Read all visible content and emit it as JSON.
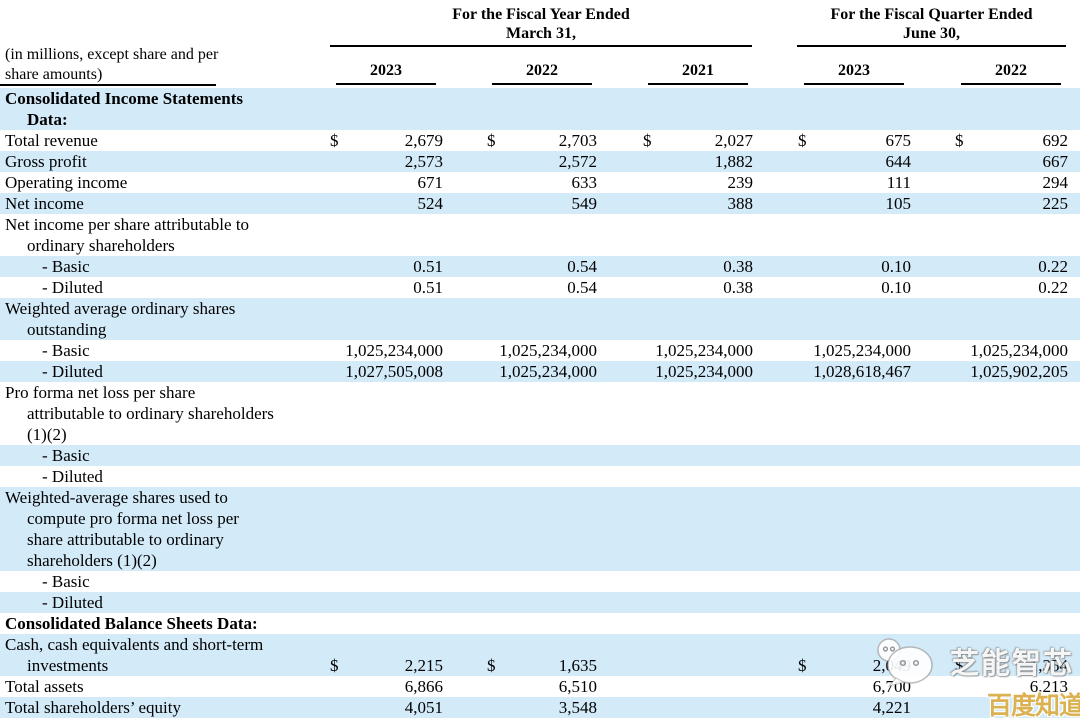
{
  "colors": {
    "row_highlight": "#d3eaf8",
    "badge_gold": "#dcb151",
    "rule_line": "#000000"
  },
  "header": {
    "units_note": "(in millions, except share and per\nshare amounts)",
    "fiscal_year_group": {
      "line1": "For the Fiscal Year Ended",
      "line2": "March 31,"
    },
    "fiscal_quarter_group": {
      "line1": "For the Fiscal Quarter Ended",
      "line2": "June 30,"
    },
    "years": [
      "2023",
      "2022",
      "2021",
      "2023",
      "2022"
    ]
  },
  "table": {
    "currency_symbol": "$",
    "rows": [
      {
        "label": "Consolidated Income Statements\nData:",
        "type": "section",
        "bg": "blue",
        "dollars": [
          false,
          false,
          false,
          false,
          false
        ],
        "values": [
          "",
          "",
          "",
          "",
          ""
        ]
      },
      {
        "label": "Total revenue",
        "type": "item",
        "bg": "white",
        "dollars": [
          true,
          true,
          true,
          true,
          true
        ],
        "values": [
          "2,679",
          "2,703",
          "2,027",
          "675",
          "692"
        ]
      },
      {
        "label": "Gross profit",
        "type": "item",
        "bg": "blue",
        "dollars": [
          false,
          false,
          false,
          false,
          false
        ],
        "values": [
          "2,573",
          "2,572",
          "1,882",
          "644",
          "667"
        ]
      },
      {
        "label": "Operating income",
        "type": "item",
        "bg": "white",
        "dollars": [
          false,
          false,
          false,
          false,
          false
        ],
        "values": [
          "671",
          "633",
          "239",
          "111",
          "294"
        ]
      },
      {
        "label": "Net income",
        "type": "item",
        "bg": "blue",
        "dollars": [
          false,
          false,
          false,
          false,
          false
        ],
        "values": [
          "524",
          "549",
          "388",
          "105",
          "225"
        ]
      },
      {
        "label": "Net income per share attributable to\nordinary shareholders",
        "type": "item",
        "bg": "white",
        "dollars": [
          false,
          false,
          false,
          false,
          false
        ],
        "values": [
          "",
          "",
          "",
          "",
          ""
        ]
      },
      {
        "label": "- Basic",
        "type": "subitem",
        "bg": "blue",
        "dollars": [
          false,
          false,
          false,
          false,
          false
        ],
        "values": [
          "0.51",
          "0.54",
          "0.38",
          "0.10",
          "0.22"
        ]
      },
      {
        "label": "- Diluted",
        "type": "subitem",
        "bg": "white",
        "dollars": [
          false,
          false,
          false,
          false,
          false
        ],
        "values": [
          "0.51",
          "0.54",
          "0.38",
          "0.10",
          "0.22"
        ]
      },
      {
        "label": "Weighted average ordinary shares\noutstanding",
        "type": "item",
        "bg": "blue",
        "dollars": [
          false,
          false,
          false,
          false,
          false
        ],
        "values": [
          "",
          "",
          "",
          "",
          ""
        ]
      },
      {
        "label": "- Basic",
        "type": "subitem",
        "bg": "white",
        "dollars": [
          false,
          false,
          false,
          false,
          false
        ],
        "values": [
          "1,025,234,000",
          "1,025,234,000",
          "1,025,234,000",
          "1,025,234,000",
          "1,025,234,000"
        ]
      },
      {
        "label": "- Diluted",
        "type": "subitem",
        "bg": "blue",
        "dollars": [
          false,
          false,
          false,
          false,
          false
        ],
        "values": [
          "1,027,505,008",
          "1,025,234,000",
          "1,025,234,000",
          "1,028,618,467",
          "1,025,902,205"
        ]
      },
      {
        "label": "Pro forma net loss per share\nattributable to ordinary shareholders\n(1)(2)",
        "type": "item",
        "bg": "white",
        "dollars": [
          false,
          false,
          false,
          false,
          false
        ],
        "values": [
          "",
          "",
          "",
          "",
          ""
        ]
      },
      {
        "label": "- Basic",
        "type": "subitem",
        "bg": "blue",
        "dollars": [
          false,
          false,
          false,
          false,
          false
        ],
        "values": [
          "",
          "",
          "",
          "",
          ""
        ]
      },
      {
        "label": "- Diluted",
        "type": "subitem",
        "bg": "white",
        "dollars": [
          false,
          false,
          false,
          false,
          false
        ],
        "values": [
          "",
          "",
          "",
          "",
          ""
        ]
      },
      {
        "label": "Weighted-average shares used to\ncompute pro forma net loss per\nshare attributable to ordinary\nshareholders (1)(2)",
        "type": "item",
        "bg": "blue",
        "dollars": [
          false,
          false,
          false,
          false,
          false
        ],
        "values": [
          "",
          "",
          "",
          "",
          ""
        ]
      },
      {
        "label": "- Basic",
        "type": "subitem",
        "bg": "white",
        "dollars": [
          false,
          false,
          false,
          false,
          false
        ],
        "values": [
          "",
          "",
          "",
          "",
          ""
        ]
      },
      {
        "label": "- Diluted",
        "type": "subitem",
        "bg": "blue",
        "dollars": [
          false,
          false,
          false,
          false,
          false
        ],
        "values": [
          "",
          "",
          "",
          "",
          ""
        ]
      },
      {
        "label": "Consolidated Balance Sheets Data:",
        "type": "section",
        "bg": "white",
        "dollars": [
          false,
          false,
          false,
          false,
          false
        ],
        "values": [
          "",
          "",
          "",
          "",
          ""
        ]
      },
      {
        "label": "Cash, cash equivalents and short-term\ninvestments",
        "type": "item",
        "bg": "blue",
        "dollars": [
          true,
          true,
          false,
          true,
          true
        ],
        "values": [
          "2,215",
          "1,635",
          "",
          "2,049",
          "1,354"
        ]
      },
      {
        "label": "Total assets",
        "type": "item",
        "bg": "white",
        "dollars": [
          false,
          false,
          false,
          false,
          false
        ],
        "values": [
          "6,866",
          "6,510",
          "",
          "6,700",
          "6,213"
        ]
      },
      {
        "label": "Total shareholders’ equity",
        "type": "item",
        "bg": "blue",
        "dollars": [
          false,
          false,
          false,
          false,
          false
        ],
        "values": [
          "4,051",
          "3,548",
          "",
          "4,221",
          ""
        ]
      }
    ]
  },
  "watermarks": {
    "wechat_text": "芝能智芯",
    "badge_text": "百度知道"
  }
}
